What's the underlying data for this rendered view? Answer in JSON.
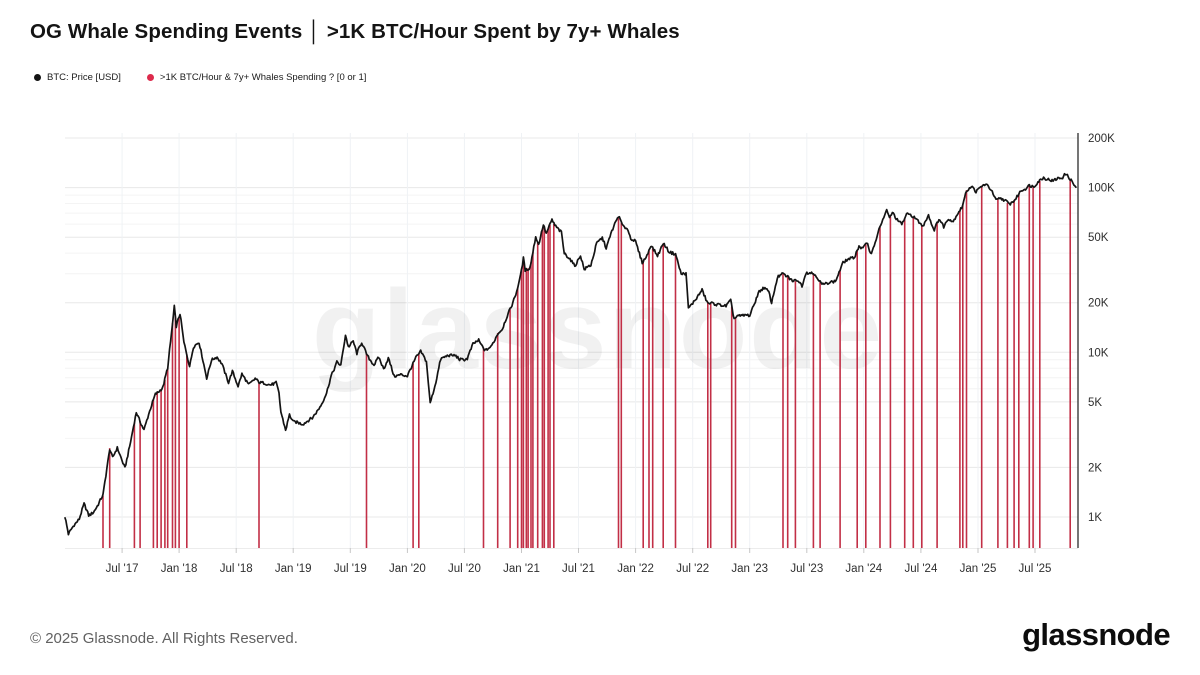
{
  "title": "OG Whale Spending Events │ >1K BTC/Hour Spent by 7y+ Whales",
  "watermark": {
    "text": "glassnode"
  },
  "footer": {
    "copyright": "© 2025 Glassnode. All Rights Reserved.",
    "logo_text": "glassnode"
  },
  "chart_data": {
    "type": "line",
    "title": "OG Whale Spending Events │ >1K BTC/Hour Spent by 7y+ Whales",
    "scale_y": "log",
    "grid": true,
    "legend_position": "top-left",
    "xlim": [
      2017.0,
      2025.87
    ],
    "ylim_usd": [
      650,
      230000
    ],
    "x_axis": {
      "ticks": [
        {
          "t": 2017.5,
          "label": "Jul '17"
        },
        {
          "t": 2018.0,
          "label": "Jan '18"
        },
        {
          "t": 2018.5,
          "label": "Jul '18"
        },
        {
          "t": 2019.0,
          "label": "Jan '19"
        },
        {
          "t": 2019.5,
          "label": "Jul '19"
        },
        {
          "t": 2020.0,
          "label": "Jan '20"
        },
        {
          "t": 2020.5,
          "label": "Jul '20"
        },
        {
          "t": 2021.0,
          "label": "Jan '21"
        },
        {
          "t": 2021.5,
          "label": "Jul '21"
        },
        {
          "t": 2022.0,
          "label": "Jan '22"
        },
        {
          "t": 2022.5,
          "label": "Jul '22"
        },
        {
          "t": 2023.0,
          "label": "Jan '23"
        },
        {
          "t": 2023.5,
          "label": "Jul '23"
        },
        {
          "t": 2024.0,
          "label": "Jan '24"
        },
        {
          "t": 2024.5,
          "label": "Jul '24"
        },
        {
          "t": 2025.0,
          "label": "Jan '25"
        },
        {
          "t": 2025.5,
          "label": "Jul '25"
        }
      ]
    },
    "y_axis": {
      "unit": "USD",
      "ticks": [
        {
          "v": 1000,
          "label": "1K"
        },
        {
          "v": 2000,
          "label": "2K"
        },
        {
          "v": 5000,
          "label": "5K"
        },
        {
          "v": 10000,
          "label": "10K"
        },
        {
          "v": 20000,
          "label": "20K"
        },
        {
          "v": 50000,
          "label": "50K"
        },
        {
          "v": 100000,
          "label": "100K"
        },
        {
          "v": 200000,
          "label": "200K"
        }
      ]
    },
    "series": [
      {
        "name": "BTC: Price [USD]",
        "color": "#141414",
        "type": "line",
        "points": [
          [
            2017.0,
            1000
          ],
          [
            2017.03,
            780
          ],
          [
            2017.08,
            900
          ],
          [
            2017.125,
            980
          ],
          [
            2017.167,
            1190
          ],
          [
            2017.208,
            1020
          ],
          [
            2017.25,
            1080
          ],
          [
            2017.292,
            1190
          ],
          [
            2017.333,
            1350
          ],
          [
            2017.392,
            2620
          ],
          [
            2017.417,
            2300
          ],
          [
            2017.458,
            2600
          ],
          [
            2017.525,
            2000
          ],
          [
            2017.575,
            2850
          ],
          [
            2017.625,
            4300
          ],
          [
            2017.692,
            3400
          ],
          [
            2017.742,
            4350
          ],
          [
            2017.792,
            5600
          ],
          [
            2017.858,
            6100
          ],
          [
            2017.9,
            8000
          ],
          [
            2017.917,
            10300
          ],
          [
            2017.958,
            19100
          ],
          [
            2017.975,
            14500
          ],
          [
            2018.008,
            17050
          ],
          [
            2018.042,
            11400
          ],
          [
            2018.092,
            8300
          ],
          [
            2018.125,
            10800
          ],
          [
            2018.175,
            11400
          ],
          [
            2018.242,
            7050
          ],
          [
            2018.283,
            8900
          ],
          [
            2018.333,
            9300
          ],
          [
            2018.375,
            8600
          ],
          [
            2018.433,
            6500
          ],
          [
            2018.467,
            7600
          ],
          [
            2018.517,
            6300
          ],
          [
            2018.55,
            7400
          ],
          [
            2018.608,
            6300
          ],
          [
            2018.667,
            7000
          ],
          [
            2018.708,
            6500
          ],
          [
            2018.792,
            6400
          ],
          [
            2018.85,
            6500
          ],
          [
            2018.875,
            5600
          ],
          [
            2018.892,
            4300
          ],
          [
            2018.933,
            3400
          ],
          [
            2018.967,
            4200
          ],
          [
            2019.0,
            3750
          ],
          [
            2019.083,
            3700
          ],
          [
            2019.167,
            3950
          ],
          [
            2019.25,
            4900
          ],
          [
            2019.292,
            5600
          ],
          [
            2019.333,
            7200
          ],
          [
            2019.383,
            8800
          ],
          [
            2019.417,
            8300
          ],
          [
            2019.458,
            12600
          ],
          [
            2019.483,
            10800
          ],
          [
            2019.525,
            11800
          ],
          [
            2019.558,
            9800
          ],
          [
            2019.6,
            11400
          ],
          [
            2019.65,
            9600
          ],
          [
            2019.708,
            8300
          ],
          [
            2019.75,
            9300
          ],
          [
            2019.792,
            8000
          ],
          [
            2019.833,
            9200
          ],
          [
            2019.883,
            7100
          ],
          [
            2019.942,
            7400
          ],
          [
            2020.0,
            7100
          ],
          [
            2020.075,
            9400
          ],
          [
            2020.117,
            10100
          ],
          [
            2020.167,
            8700
          ],
          [
            2020.2,
            4950
          ],
          [
            2020.25,
            6600
          ],
          [
            2020.292,
            9000
          ],
          [
            2020.358,
            9700
          ],
          [
            2020.417,
            9500
          ],
          [
            2020.458,
            9000
          ],
          [
            2020.525,
            9200
          ],
          [
            2020.575,
            11100
          ],
          [
            2020.625,
            11900
          ],
          [
            2020.683,
            10200
          ],
          [
            2020.733,
            10700
          ],
          [
            2020.792,
            13100
          ],
          [
            2020.833,
            13800
          ],
          [
            2020.875,
            16500
          ],
          [
            2020.917,
            19600
          ],
          [
            2020.958,
            23500
          ],
          [
            2020.992,
            29000
          ],
          [
            2021.017,
            37000
          ],
          [
            2021.033,
            31500
          ],
          [
            2021.075,
            33000
          ],
          [
            2021.125,
            50000
          ],
          [
            2021.15,
            44500
          ],
          [
            2021.192,
            60000
          ],
          [
            2021.217,
            53000
          ],
          [
            2021.267,
            63300
          ],
          [
            2021.292,
            58500
          ],
          [
            2021.35,
            54000
          ],
          [
            2021.375,
            40000
          ],
          [
            2021.425,
            36500
          ],
          [
            2021.467,
            33500
          ],
          [
            2021.517,
            39000
          ],
          [
            2021.55,
            31500
          ],
          [
            2021.608,
            34000
          ],
          [
            2021.658,
            46000
          ],
          [
            2021.708,
            49000
          ],
          [
            2021.742,
            43000
          ],
          [
            2021.792,
            55000
          ],
          [
            2021.85,
            66600
          ],
          [
            2021.892,
            58000
          ],
          [
            2021.925,
            57500
          ],
          [
            2021.958,
            49000
          ],
          [
            2022.0,
            46500
          ],
          [
            2022.058,
            35500
          ],
          [
            2022.1,
            38500
          ],
          [
            2022.133,
            44200
          ],
          [
            2022.192,
            39000
          ],
          [
            2022.242,
            45800
          ],
          [
            2022.292,
            40500
          ],
          [
            2022.35,
            40000
          ],
          [
            2022.4,
            29500
          ],
          [
            2022.442,
            30000
          ],
          [
            2022.463,
            18700
          ],
          [
            2022.5,
            20000
          ],
          [
            2022.542,
            21500
          ],
          [
            2022.583,
            23800
          ],
          [
            2022.633,
            20000
          ],
          [
            2022.667,
            19800
          ],
          [
            2022.708,
            19300
          ],
          [
            2022.75,
            19500
          ],
          [
            2022.792,
            19200
          ],
          [
            2022.833,
            20400
          ],
          [
            2022.863,
            15900
          ],
          [
            2022.892,
            16800
          ],
          [
            2022.958,
            16700
          ],
          [
            2023.0,
            16600
          ],
          [
            2023.075,
            23100
          ],
          [
            2023.125,
            24400
          ],
          [
            2023.167,
            23400
          ],
          [
            2023.192,
            20200
          ],
          [
            2023.242,
            28200
          ],
          [
            2023.292,
            29900
          ],
          [
            2023.333,
            29000
          ],
          [
            2023.383,
            26800
          ],
          [
            2023.417,
            27300
          ],
          [
            2023.458,
            25600
          ],
          [
            2023.492,
            30600
          ],
          [
            2023.542,
            30000
          ],
          [
            2023.583,
            29200
          ],
          [
            2023.633,
            26000
          ],
          [
            2023.667,
            25900
          ],
          [
            2023.708,
            26600
          ],
          [
            2023.75,
            27200
          ],
          [
            2023.817,
            34600
          ],
          [
            2023.875,
            37200
          ],
          [
            2023.917,
            38000
          ],
          [
            2023.958,
            43800
          ],
          [
            2023.983,
            42300
          ],
          [
            2024.033,
            46600
          ],
          [
            2024.058,
            39900
          ],
          [
            2024.083,
            42600
          ],
          [
            2024.158,
            62500
          ],
          [
            2024.2,
            73000
          ],
          [
            2024.225,
            65300
          ],
          [
            2024.25,
            69800
          ],
          [
            2024.292,
            63800
          ],
          [
            2024.333,
            60600
          ],
          [
            2024.375,
            68300
          ],
          [
            2024.417,
            67600
          ],
          [
            2024.458,
            65200
          ],
          [
            2024.492,
            61200
          ],
          [
            2024.517,
            57400
          ],
          [
            2024.567,
            68200
          ],
          [
            2024.6,
            58900
          ],
          [
            2024.617,
            56100
          ],
          [
            2024.658,
            64100
          ],
          [
            2024.7,
            57600
          ],
          [
            2024.742,
            65700
          ],
          [
            2024.783,
            62200
          ],
          [
            2024.825,
            69400
          ],
          [
            2024.858,
            75600
          ],
          [
            2024.9,
            96500
          ],
          [
            2024.942,
            101200
          ],
          [
            2024.983,
            93800
          ],
          [
            2025.025,
            102100
          ],
          [
            2025.058,
            104800
          ],
          [
            2025.083,
            102000
          ],
          [
            2025.117,
            95800
          ],
          [
            2025.158,
            84300
          ],
          [
            2025.192,
            86900
          ],
          [
            2025.242,
            82300
          ],
          [
            2025.275,
            79200
          ],
          [
            2025.325,
            85100
          ],
          [
            2025.375,
            94600
          ],
          [
            2025.408,
            97100
          ],
          [
            2025.45,
            104100
          ],
          [
            2025.492,
            101500
          ],
          [
            2025.533,
            108300
          ],
          [
            2025.575,
            115600
          ],
          [
            2025.617,
            112800
          ],
          [
            2025.658,
            108600
          ],
          [
            2025.7,
            113500
          ],
          [
            2025.742,
            116500
          ],
          [
            2025.767,
            121800
          ],
          [
            2025.808,
            111500
          ],
          [
            2025.833,
            106000
          ],
          [
            2025.858,
            100500
          ]
        ]
      },
      {
        "name": ">1K BTC/Hour & 7y+ Whales Spending ? [0 or 1]",
        "color": "#c22f46",
        "legend_dot_color": "#dd2a4c",
        "type": "event-bars",
        "event_value": 1,
        "events": [
          2017.333,
          2017.392,
          2017.608,
          2017.658,
          2017.775,
          2017.808,
          2017.842,
          2017.875,
          2017.9,
          2017.942,
          2017.967,
          2018.0,
          2018.067,
          2018.7,
          2019.642,
          2020.05,
          2020.1,
          2020.667,
          2020.792,
          2020.9,
          2020.967,
          2021.0,
          2021.017,
          2021.042,
          2021.058,
          2021.083,
          2021.1,
          2021.142,
          2021.183,
          2021.2,
          2021.233,
          2021.25,
          2021.283,
          2021.85,
          2021.875,
          2022.067,
          2022.117,
          2022.15,
          2022.242,
          2022.35,
          2022.633,
          2022.658,
          2022.842,
          2022.875,
          2023.292,
          2023.333,
          2023.4,
          2023.558,
          2023.617,
          2023.792,
          2023.942,
          2024.017,
          2024.142,
          2024.233,
          2024.358,
          2024.433,
          2024.508,
          2024.642,
          2024.842,
          2024.867,
          2024.9,
          2025.033,
          2025.175,
          2025.258,
          2025.317,
          2025.358,
          2025.45,
          2025.483,
          2025.542,
          2025.808
        ]
      }
    ]
  }
}
